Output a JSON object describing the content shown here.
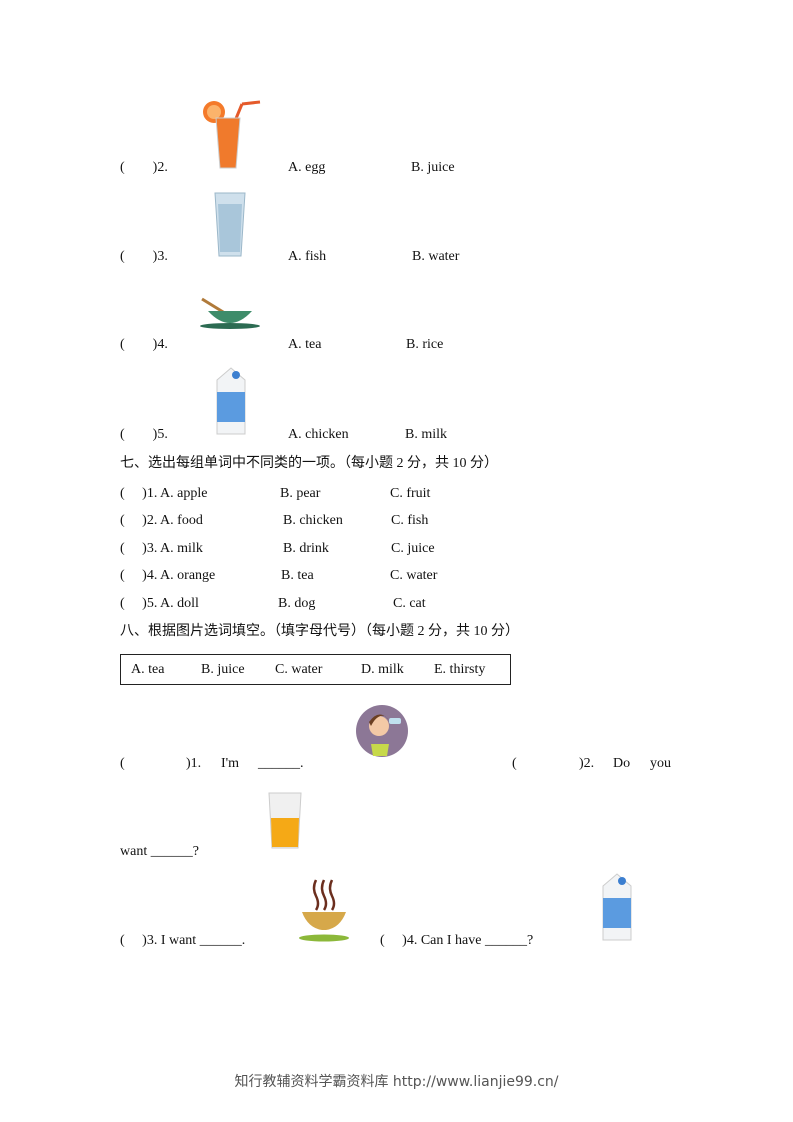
{
  "section6_items": [
    {
      "paren": "(        )2.",
      "a": "A. egg",
      "b": "B. juice",
      "icon": "orange-juice-icon"
    },
    {
      "paren": "(        )3.",
      "a": "A. fish",
      "b": "B. water",
      "icon": "water-glass-icon"
    },
    {
      "paren": "(        )4.",
      "a": "A. tea",
      "b": "B. rice",
      "icon": "tea-cup-icon"
    },
    {
      "paren": "(        )5.",
      "a": "A. chicken",
      "b": "B. milk",
      "icon": "milk-carton-icon"
    }
  ],
  "section7": {
    "heading": "七、选出每组单词中不同类的一项。（每小题 2 分，共 10 分）",
    "rows": [
      {
        "q": "(     )1. A. apple",
        "b": "B. pear",
        "c": "C. fruit"
      },
      {
        "q": "(     )2. A. food",
        "b": "B. chicken",
        "c": "C. fish"
      },
      {
        "q": "(     )3. A. milk",
        "b": "B. drink",
        "c": "C. juice"
      },
      {
        "q": "(     )4. A. orange",
        "b": "B. tea",
        "c": "C. water"
      },
      {
        "q": "(     )5. A. doll",
        "b": "B. dog",
        "c": "C. cat"
      }
    ]
  },
  "section8": {
    "heading": "八、根据图片选词填空。（填字母代号）（每小题 2 分，共 10 分）",
    "options": [
      "A. tea",
      "B. juice",
      "C. water",
      "D. milk",
      "E. thirsty"
    ],
    "q1": {
      "paren": "(",
      "num": ")1.",
      "text": "I'm",
      "blank": "______."
    },
    "q2": {
      "paren": "(",
      "num": ")2.",
      "w1": "Do",
      "w2": "you",
      "cont": "want ______?"
    },
    "q3": "(     )3. I want ______.",
    "q4": "(     )4. Can I have ______?"
  },
  "footer": "知行教辅资料学霸资料库 http://www.lianjie99.cn/"
}
